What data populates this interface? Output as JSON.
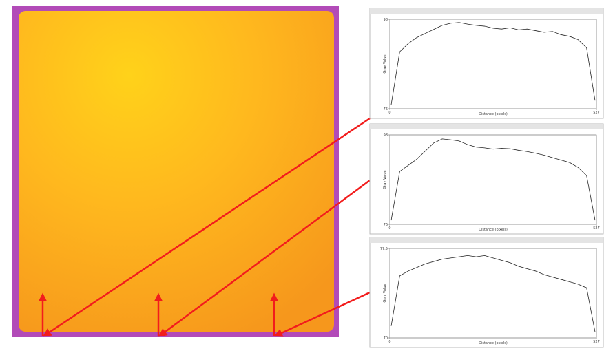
{
  "panels": [
    {
      "x_label": "Distance (pixels)",
      "y_label": "Gray Value",
      "xlim": [
        0,
        527
      ],
      "xticks": [
        0,
        527
      ],
      "ylim": [
        76,
        98
      ],
      "yticks": [
        76,
        98
      ],
      "profile": [
        77,
        90,
        92,
        93.5,
        94.5,
        95.5,
        96.5,
        97,
        97.2,
        96.8,
        96.5,
        96.3,
        95.8,
        95.6,
        95.9,
        95.4,
        95.6,
        95.2,
        94.8,
        95,
        94.2,
        93.8,
        93,
        91,
        78
      ]
    },
    {
      "x_label": "Distance (pixels)",
      "y_label": "Gray Value",
      "xlim": [
        0,
        527
      ],
      "xticks": [
        0,
        527
      ],
      "ylim": [
        76,
        98
      ],
      "yticks": [
        76,
        98
      ],
      "profile": [
        77,
        89,
        90.5,
        92,
        94,
        96,
        97,
        96.8,
        96.5,
        95.6,
        95,
        94.8,
        94.5,
        94.7,
        94.6,
        94.2,
        93.9,
        93.5,
        93,
        92.4,
        91.8,
        91.2,
        90,
        88,
        77
      ]
    },
    {
      "x_label": "Distance (pixels)",
      "y_label": "Gray Value",
      "xlim": [
        0,
        527
      ],
      "xticks": [
        0,
        527
      ],
      "ylim": [
        70,
        77.5
      ],
      "yticks": [
        70,
        77.5
      ],
      "profile": [
        71,
        75.2,
        75.6,
        75.9,
        76.2,
        76.4,
        76.6,
        76.7,
        76.8,
        76.9,
        76.8,
        76.9,
        76.7,
        76.5,
        76.3,
        76,
        75.8,
        75.6,
        75.3,
        75.1,
        74.9,
        74.7,
        74.5,
        74.2,
        70.5
      ]
    }
  ]
}
